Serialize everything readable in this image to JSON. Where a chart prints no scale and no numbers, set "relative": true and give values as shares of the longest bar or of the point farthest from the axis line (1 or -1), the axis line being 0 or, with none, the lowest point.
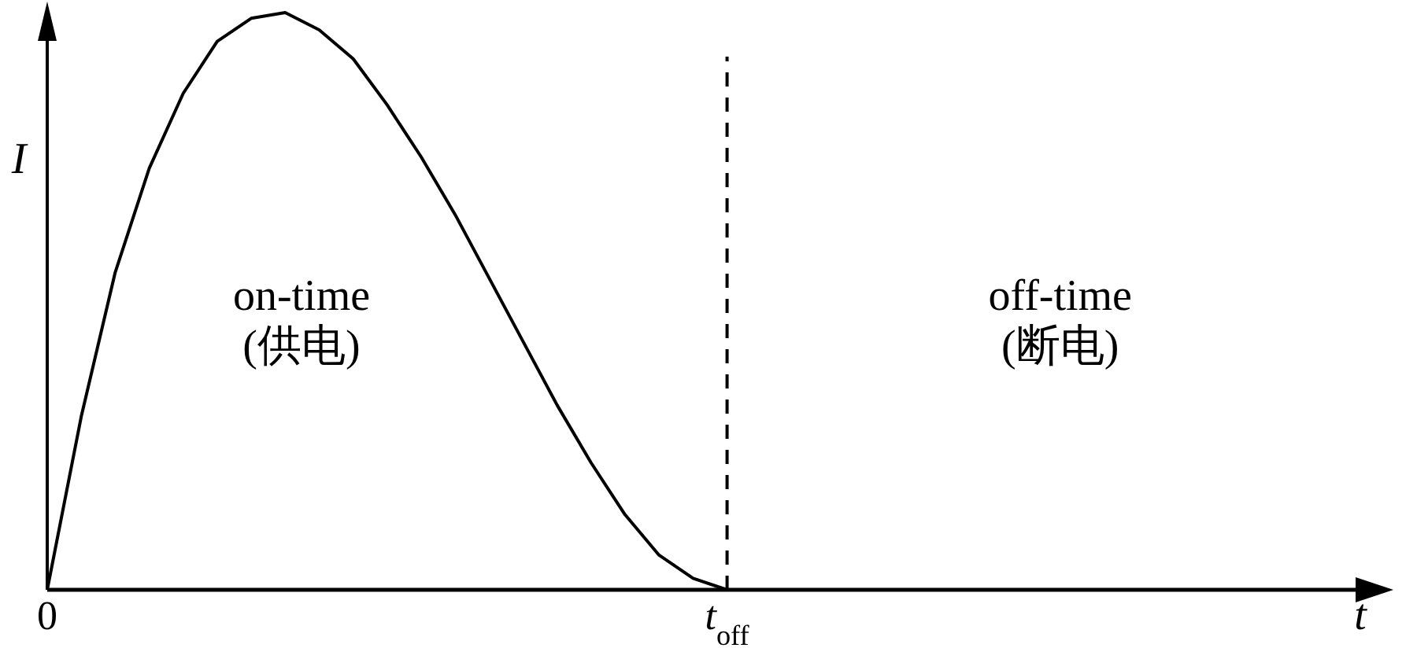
{
  "chart_data": {
    "type": "line",
    "relative": true,
    "xlabel": "t",
    "ylabel": "I",
    "categories": [
      "0",
      null,
      null,
      null,
      null,
      null,
      null,
      null,
      null,
      null,
      null,
      null,
      null,
      null,
      null,
      null,
      null,
      null,
      null,
      null,
      "t$_{off}$",
      null,
      null,
      null,
      null,
      null,
      null,
      null,
      null,
      null,
      null,
      null,
      null,
      null,
      null,
      null,
      null,
      null,
      null,
      null
    ],
    "series": [
      {
        "color": "#000000",
        "values": [
          0,
          0.3,
          0.55,
          0.73,
          0.86,
          0.95,
          0.99,
          1,
          0.97,
          0.92,
          0.84,
          0.75,
          0.65,
          0.54,
          0.43,
          0.32,
          0.22,
          0.13,
          0.06,
          0.02,
          0,
          0,
          0,
          0,
          0,
          0,
          0,
          0,
          0,
          0,
          0,
          0,
          0,
          0,
          0,
          0,
          0,
          0,
          0,
          0
        ]
      }
    ],
    "ref_lines": [
      {
        "axis": "x",
        "value": "t$_{off}$",
        "color": "#000000",
        "line_style": "dashed"
      }
    ],
    "annotations": [
      "on-time\n(供电)",
      "off-time\n(断电)"
    ],
    "line_style": "solid",
    "marker": "none"
  }
}
